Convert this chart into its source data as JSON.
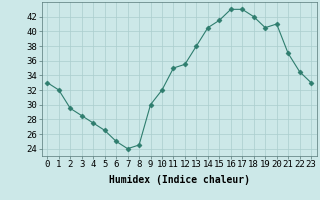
{
  "x": [
    0,
    1,
    2,
    3,
    4,
    5,
    6,
    7,
    8,
    9,
    10,
    11,
    12,
    13,
    14,
    15,
    16,
    17,
    18,
    19,
    20,
    21,
    22,
    23
  ],
  "y": [
    33,
    32,
    29.5,
    28.5,
    27.5,
    26.5,
    25,
    24,
    24.5,
    30,
    32,
    35,
    35.5,
    38,
    40.5,
    41.5,
    43,
    43,
    42,
    40.5,
    41,
    37,
    34.5,
    33
  ],
  "line_color": "#2e7d6e",
  "marker": "D",
  "marker_size": 2.5,
  "bg_color": "#cce8e8",
  "grid_color": "#aacece",
  "xlabel": "Humidex (Indice chaleur)",
  "xlim": [
    -0.5,
    23.5
  ],
  "ylim": [
    23,
    44
  ],
  "xticks": [
    0,
    1,
    2,
    3,
    4,
    5,
    6,
    7,
    8,
    9,
    10,
    11,
    12,
    13,
    14,
    15,
    16,
    17,
    18,
    19,
    20,
    21,
    22,
    23
  ],
  "yticks": [
    24,
    26,
    28,
    30,
    32,
    34,
    36,
    38,
    40,
    42
  ],
  "xlabel_fontsize": 7,
  "tick_fontsize": 6.5
}
